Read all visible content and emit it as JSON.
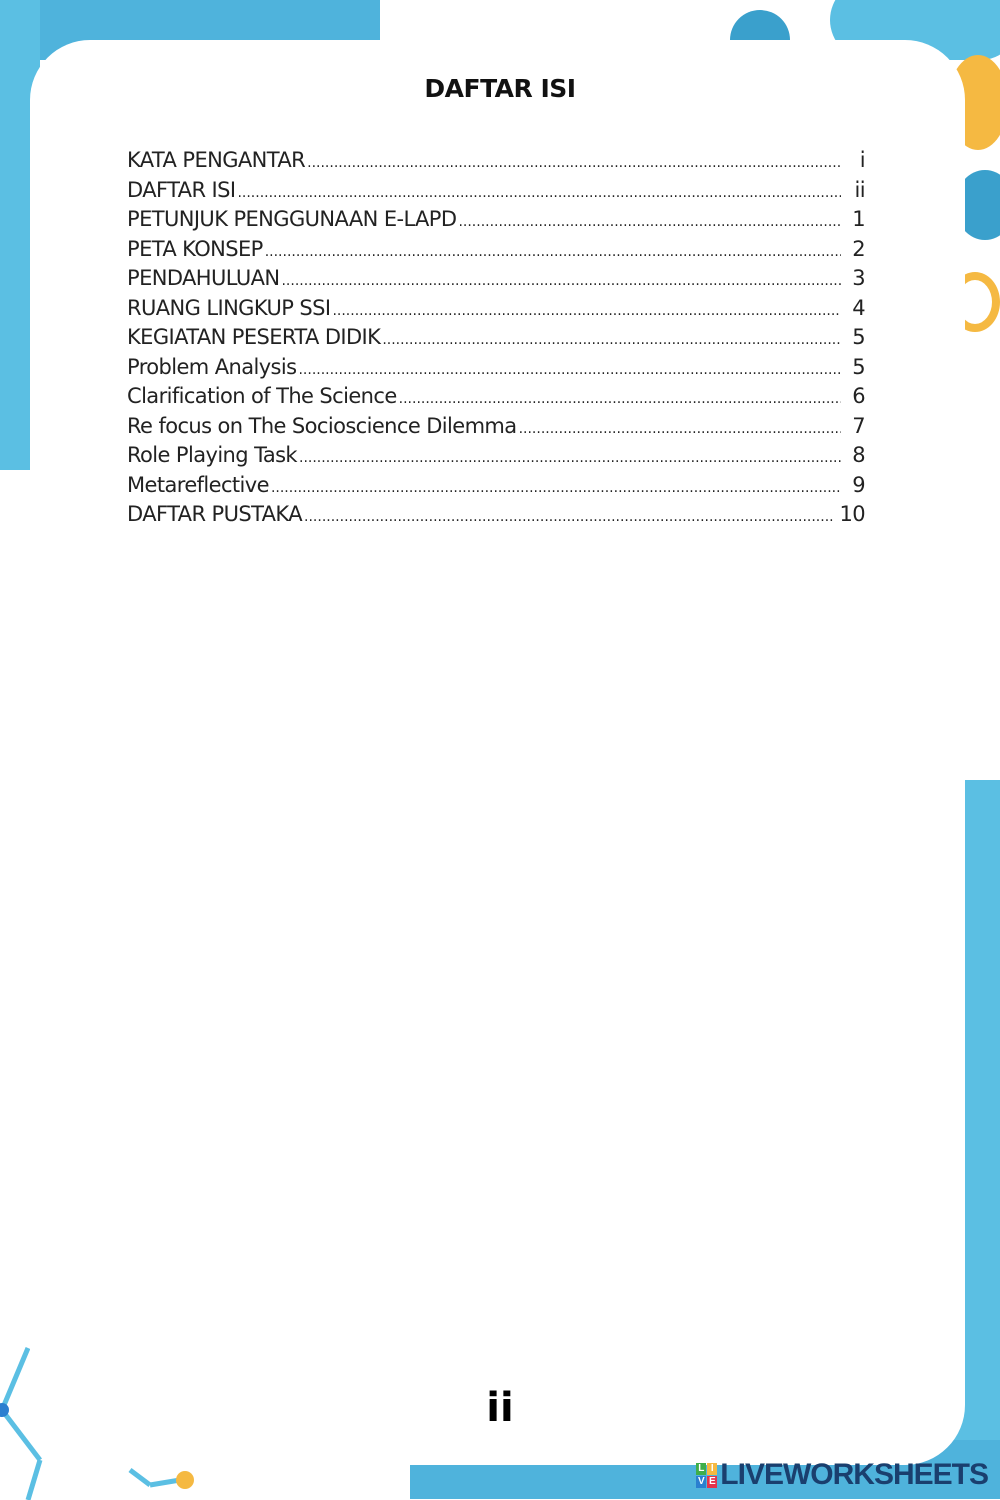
{
  "title": "DAFTAR ISI",
  "toc": [
    {
      "label": "KATA PENGANTAR",
      "page": "i"
    },
    {
      "label": "DAFTAR ISI",
      "page": "ii"
    },
    {
      "label": "PETUNJUK PENGGUNAAN E-LAPD",
      "page": "1"
    },
    {
      "label": "PETA KONSEP",
      "page": "2"
    },
    {
      "label": "PENDAHULUAN",
      "page": "3"
    },
    {
      "label": "RUANG LINGKUP SSI",
      "page": "4"
    },
    {
      "label": "KEGIATAN PESERTA DIDIK",
      "page": "5"
    },
    {
      "label": "Problem Analysis",
      "page": "5"
    },
    {
      "label": "Clarification of The Science",
      "page": "6"
    },
    {
      "label": "Re focus on The Socioscience Dilemma",
      "page": "7"
    },
    {
      "label": "Role Playing Task",
      "page": "8"
    },
    {
      "label": "Metareflective",
      "page": "9"
    },
    {
      "label": "DAFTAR PUSTAKA",
      "page": "10"
    }
  ],
  "page_number": "ii",
  "watermark": {
    "text": "LIVEWORKSHEETS",
    "mark_letters": [
      "L",
      "I",
      "V",
      "E"
    ]
  },
  "colors": {
    "accent_blue": "#5bbfe3",
    "dark_blue": "#3aa0cc",
    "accent_orange": "#f5b942",
    "logo_navy": "#1a3f6e"
  }
}
